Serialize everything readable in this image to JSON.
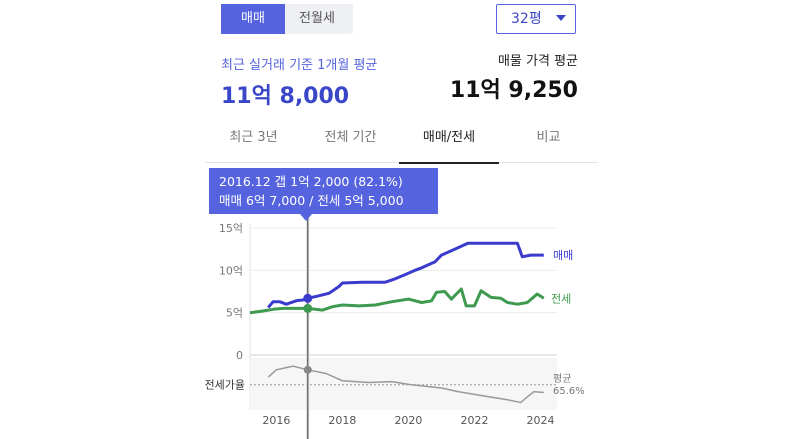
{
  "deal_tabs": [
    {
      "label": "매매",
      "active": true
    },
    {
      "label": "전월세",
      "active": false
    }
  ],
  "area_select": {
    "value": "32평"
  },
  "recent": {
    "label": "최근 실거래 기준 1개월 평균",
    "price": "11억 8,000"
  },
  "listing": {
    "label": "매물 가격 평균",
    "price": "11억 9,250"
  },
  "period_tabs": [
    {
      "label": "최근 3년",
      "active": false
    },
    {
      "label": "전체 기간",
      "active": false
    },
    {
      "label": "매매/전세",
      "active": true
    },
    {
      "label": "비교",
      "active": false
    }
  ],
  "tooltip": {
    "line1": "2016.12  갭 1억 2,000 (82.1%)",
    "line2": "매매 6억 7,000 / 전세 5억 5,000"
  },
  "colors": {
    "accent": "#5563de",
    "sale": "#3a3acd",
    "lease": "#3e9a4e",
    "ratio": "#999999"
  },
  "chart_data": {
    "type": "line",
    "x_ticks": [
      2016,
      2018,
      2020,
      2022,
      2024
    ],
    "xlim": [
      2015.2,
      2024.5
    ],
    "y_ticks": [
      {
        "value": 0,
        "label": "0"
      },
      {
        "value": 5,
        "label": "5억"
      },
      {
        "value": 10,
        "label": "10억"
      },
      {
        "value": 15,
        "label": "15억"
      }
    ],
    "ylim": [
      0,
      15
    ],
    "cursor_x": 2016.95,
    "series": [
      {
        "name": "매매",
        "color": "#3a3acd",
        "points": [
          [
            2015.75,
            5.6
          ],
          [
            2015.9,
            6.3
          ],
          [
            2016.1,
            6.3
          ],
          [
            2016.3,
            6.0
          ],
          [
            2016.6,
            6.4
          ],
          [
            2016.8,
            6.5
          ],
          [
            2016.95,
            6.7
          ],
          [
            2017.3,
            7.0
          ],
          [
            2017.6,
            7.3
          ],
          [
            2017.9,
            8.1
          ],
          [
            2018.0,
            8.5
          ],
          [
            2018.6,
            8.6
          ],
          [
            2019.3,
            8.6
          ],
          [
            2019.6,
            9.0
          ],
          [
            2019.9,
            9.5
          ],
          [
            2020.2,
            10.0
          ],
          [
            2020.4,
            10.3
          ],
          [
            2020.8,
            11.0
          ],
          [
            2021.0,
            11.8
          ],
          [
            2021.4,
            12.5
          ],
          [
            2021.8,
            13.2
          ],
          [
            2022.3,
            13.2
          ],
          [
            2022.8,
            13.2
          ],
          [
            2023.3,
            13.2
          ],
          [
            2023.45,
            11.6
          ],
          [
            2023.7,
            11.8
          ],
          [
            2024.1,
            11.8
          ]
        ]
      },
      {
        "name": "전세",
        "color": "#3e9a4e",
        "points": [
          [
            2015.2,
            5.0
          ],
          [
            2015.6,
            5.2
          ],
          [
            2015.9,
            5.4
          ],
          [
            2016.2,
            5.5
          ],
          [
            2016.95,
            5.5
          ],
          [
            2017.4,
            5.3
          ],
          [
            2017.7,
            5.7
          ],
          [
            2018.0,
            5.9
          ],
          [
            2018.5,
            5.8
          ],
          [
            2019.0,
            5.9
          ],
          [
            2019.5,
            6.3
          ],
          [
            2020.0,
            6.6
          ],
          [
            2020.4,
            6.2
          ],
          [
            2020.7,
            6.4
          ],
          [
            2020.85,
            7.4
          ],
          [
            2021.1,
            7.5
          ],
          [
            2021.3,
            6.6
          ],
          [
            2021.6,
            7.8
          ],
          [
            2021.75,
            5.8
          ],
          [
            2022.0,
            5.8
          ],
          [
            2022.2,
            7.6
          ],
          [
            2022.5,
            6.8
          ],
          [
            2022.8,
            6.7
          ],
          [
            2023.0,
            6.2
          ],
          [
            2023.3,
            6.0
          ],
          [
            2023.6,
            6.2
          ],
          [
            2023.9,
            7.2
          ],
          [
            2024.1,
            6.7
          ]
        ]
      }
    ],
    "ratio": {
      "label": "전세가율",
      "avg_label": "평균",
      "avg_value": "65.6%",
      "avg": 65.6,
      "points": [
        [
          2015.75,
          74
        ],
        [
          2016.0,
          82
        ],
        [
          2016.5,
          86
        ],
        [
          2016.95,
          82
        ],
        [
          2017.5,
          78
        ],
        [
          2018.0,
          70
        ],
        [
          2018.8,
          68
        ],
        [
          2019.5,
          69
        ],
        [
          2020.0,
          66
        ],
        [
          2020.5,
          64
        ],
        [
          2021.0,
          62
        ],
        [
          2021.5,
          58
        ],
        [
          2022.0,
          55
        ],
        [
          2022.5,
          52
        ],
        [
          2023.0,
          49
        ],
        [
          2023.4,
          46
        ],
        [
          2023.8,
          58
        ],
        [
          2024.1,
          57
        ]
      ]
    },
    "labels": {
      "sale": "매매",
      "lease": "전세"
    }
  }
}
